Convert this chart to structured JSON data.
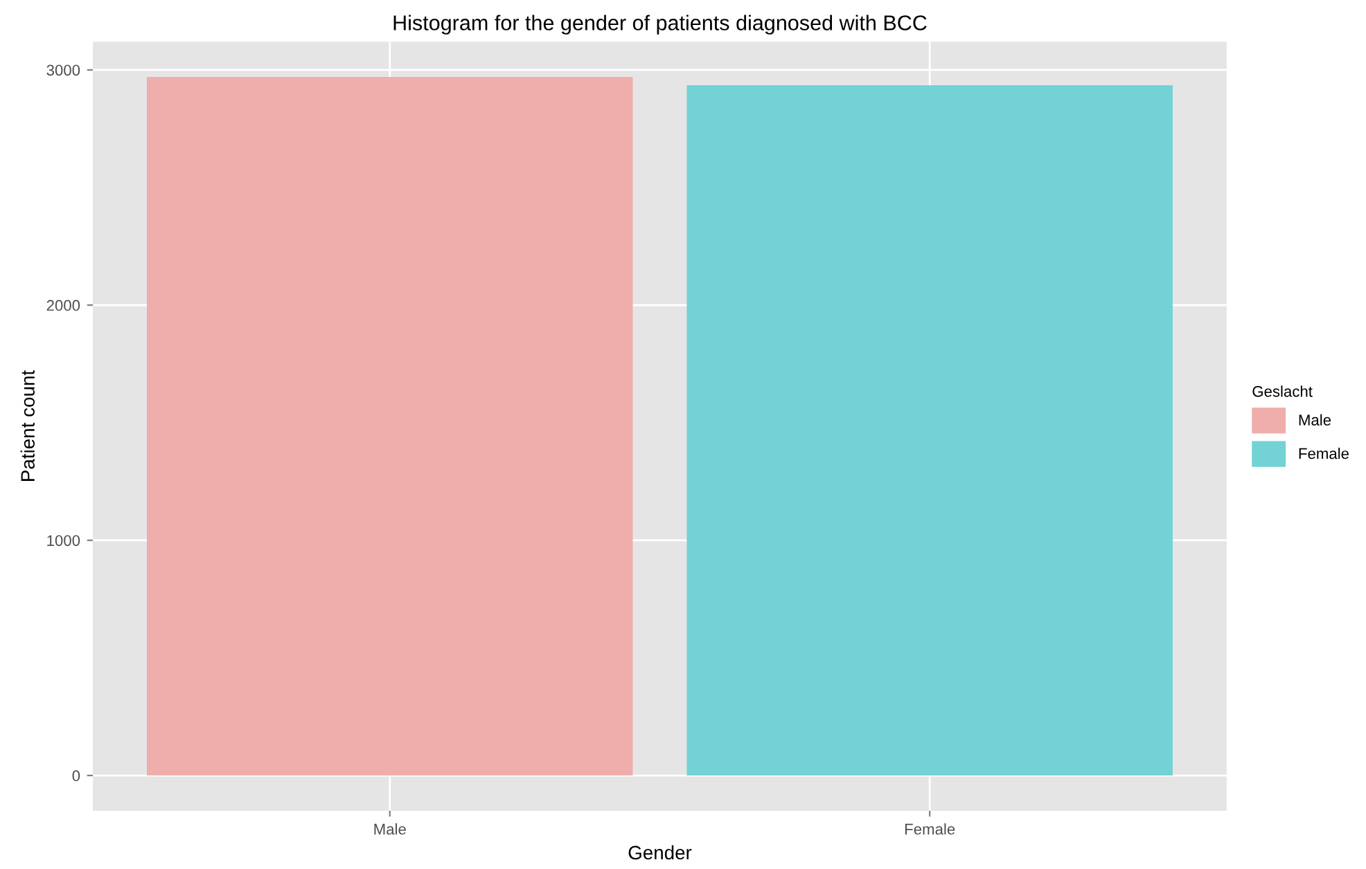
{
  "chart_data": {
    "type": "bar",
    "title": "Histogram for the gender of patients diagnosed with BCC",
    "xlabel": "Gender",
    "ylabel": "Patient count",
    "legend_title": "Geslacht",
    "categories": [
      "Male",
      "Female"
    ],
    "series": [
      {
        "name": "Male",
        "color": "#efaeab",
        "values": [
          2970,
          null
        ]
      },
      {
        "name": "Female",
        "color": "#73d2d4",
        "values": [
          null,
          2935
        ]
      }
    ],
    "ylim": [
      -150,
      3120
    ],
    "yticks": [
      0,
      1000,
      2000,
      3000
    ],
    "grid": true,
    "legend": "right"
  }
}
